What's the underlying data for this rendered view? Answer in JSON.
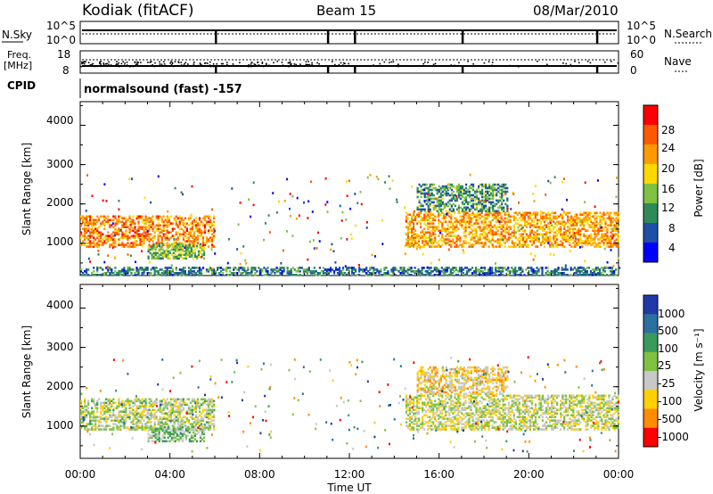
{
  "header": {
    "station": "Kodiak (fitACF)",
    "beam": "Beam 15",
    "date": "08/Mar/2010"
  },
  "noise_panel": {
    "left_label": "N.Sky",
    "left_ticks": [
      "10^5",
      "10^0"
    ],
    "right_ticks": [
      "10^5",
      "10^0"
    ],
    "right_label": "N.Search"
  },
  "freq_panel": {
    "left_label_1": "Freq.",
    "left_label_2": "[MHz]",
    "left_ticks": [
      "18",
      "8"
    ],
    "right_ticks": [
      "60",
      "0"
    ],
    "right_label": "Nave"
  },
  "cpid_panel": {
    "label": "CPID",
    "program": "normalsound (fast) -157"
  },
  "power_panel": {
    "ylabel": "Slant Range [km]",
    "yticks": [
      "4000",
      "3000",
      "2000",
      "1000"
    ],
    "colorbar_label": "Power [dB]",
    "colorbar_ticks": [
      "28",
      "24",
      "20",
      "16",
      "12",
      "8",
      "4"
    ],
    "colors": [
      "#0000ff",
      "#1b4fa8",
      "#2e8b57",
      "#7fc241",
      "#ffd800",
      "#ff9a00",
      "#ff5a00",
      "#ff0000"
    ]
  },
  "velocity_panel": {
    "ylabel": "Slant Range [km]",
    "yticks": [
      "4000",
      "3000",
      "2000",
      "1000"
    ],
    "colorbar_label": "Velocity [m s⁻¹]",
    "colorbar_ticks": [
      "1000",
      "500",
      "100",
      "25",
      "-25",
      "-100",
      "-500",
      "-1000"
    ],
    "colors": [
      "#1f3aa8",
      "#2a6fa0",
      "#3a9a5e",
      "#7fc241",
      "#c8c8c8",
      "#ffd000",
      "#ff8c00",
      "#ff0000"
    ]
  },
  "xaxis": {
    "label": "Time UT",
    "ticks": [
      "00:00",
      "04:00",
      "08:00",
      "12:00",
      "16:00",
      "20:00",
      "00:00"
    ]
  },
  "chart_data": {
    "type": "heatmap",
    "title": "Kodiak (fitACF)   Beam 15   08/Mar/2010",
    "xlabel": "Time UT",
    "ylabel": "Slant Range [km]",
    "xlim": [
      "00:00",
      "24:00"
    ],
    "ylim": [
      180,
      4600
    ],
    "panels": [
      {
        "name": "Power",
        "units": "dB",
        "color_range": [
          0,
          30
        ],
        "regions": [
          {
            "t_start": 0.0,
            "t_end": 6.0,
            "range_start": 900,
            "range_end": 1700,
            "value": 22
          },
          {
            "t_start": 3.0,
            "t_end": 5.5,
            "range_start": 600,
            "range_end": 1000,
            "value": 12
          },
          {
            "t_start": 14.5,
            "t_end": 24.0,
            "range_start": 900,
            "range_end": 1800,
            "value": 20
          },
          {
            "t_start": 15.0,
            "t_end": 19.0,
            "range_start": 1800,
            "range_end": 2500,
            "value": 10
          },
          {
            "t_start": 0.0,
            "t_end": 24.0,
            "range_start": 180,
            "range_end": 400,
            "value": 8
          }
        ]
      },
      {
        "name": "Velocity",
        "units": "m s-1",
        "color_range": [
          -1000,
          1000
        ],
        "regions": [
          {
            "t_start": 0.0,
            "t_end": 6.0,
            "range_start": 900,
            "range_end": 1700,
            "value": -50
          },
          {
            "t_start": 3.0,
            "t_end": 5.5,
            "range_start": 600,
            "range_end": 1000,
            "value": 150
          },
          {
            "t_start": 14.5,
            "t_end": 24.0,
            "range_start": 900,
            "range_end": 1800,
            "value": -100
          },
          {
            "t_start": 15.0,
            "t_end": 19.0,
            "range_start": 1800,
            "range_end": 2500,
            "value": -300
          }
        ]
      }
    ]
  }
}
